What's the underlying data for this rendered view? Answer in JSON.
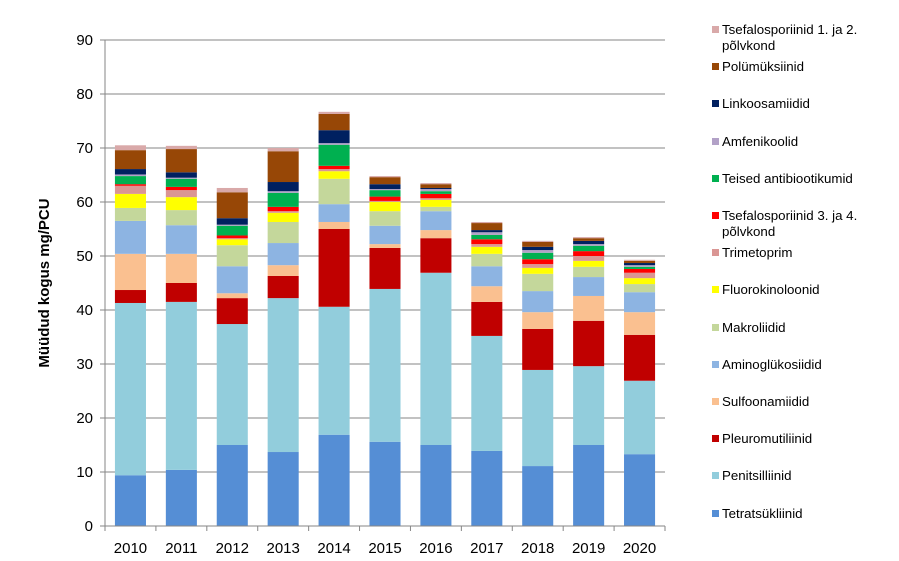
{
  "chart_data": {
    "type": "bar",
    "stacked": true,
    "title": "",
    "xlabel": "",
    "ylabel": "Müüdud kogus mg/PCU",
    "ylim": [
      0,
      90
    ],
    "yticks": [
      0,
      10,
      20,
      30,
      40,
      50,
      60,
      70,
      80,
      90
    ],
    "grid": true,
    "legend_position": "right",
    "categories": [
      "2010",
      "2011",
      "2012",
      "2013",
      "2014",
      "2015",
      "2016",
      "2017",
      "2018",
      "2019",
      "2020"
    ],
    "series": [
      {
        "name": "Tetratsükliinid",
        "color": "#558ED5",
        "values": [
          9.4,
          10.4,
          15.0,
          13.7,
          16.9,
          15.6,
          15.0,
          13.9,
          11.1,
          15.0,
          13.3
        ]
      },
      {
        "name": "Penitsilliinid",
        "color": "#92CDDC",
        "values": [
          31.9,
          31.1,
          22.4,
          28.5,
          23.7,
          28.3,
          31.9,
          21.3,
          17.8,
          14.6,
          13.6
        ]
      },
      {
        "name": "Pleuromutiliinid",
        "color": "#C00000",
        "values": [
          2.4,
          3.5,
          4.8,
          4.1,
          14.4,
          7.6,
          6.4,
          6.3,
          7.6,
          8.4,
          8.5
        ]
      },
      {
        "name": "Sulfoonamiidid",
        "color": "#FAC090",
        "values": [
          6.7,
          5.4,
          0.9,
          2.0,
          1.3,
          0.7,
          1.5,
          2.9,
          3.1,
          4.6,
          4.2
        ]
      },
      {
        "name": "Aminoglükosiidid",
        "color": "#8DB4E2",
        "values": [
          6.1,
          5.3,
          5.0,
          4.1,
          3.3,
          3.4,
          3.5,
          3.7,
          3.9,
          3.5,
          3.7
        ]
      },
      {
        "name": "Makroliidid",
        "color": "#C4D79B",
        "values": [
          2.4,
          2.8,
          3.9,
          3.9,
          4.7,
          2.7,
          0.8,
          2.3,
          3.2,
          1.9,
          1.5
        ]
      },
      {
        "name": "Fluorokinoloonid",
        "color": "#FFFF00",
        "values": [
          2.6,
          2.4,
          1.1,
          1.7,
          1.4,
          1.7,
          1.3,
          1.3,
          1.1,
          1.1,
          1.1
        ]
      },
      {
        "name": "Trimetoprim",
        "color": "#DA9694",
        "values": [
          1.5,
          1.3,
          0.2,
          0.3,
          0.4,
          0.2,
          0.3,
          0.5,
          0.7,
          0.9,
          1.0
        ]
      },
      {
        "name": "Tsefalosporiinid 3. ja 4. põlvkond",
        "color": "#FF0000",
        "values": [
          0.3,
          0.6,
          0.5,
          0.8,
          0.6,
          0.8,
          0.8,
          0.9,
          0.9,
          0.9,
          0.7
        ]
      },
      {
        "name": "Teised antibiootikumid",
        "color": "#00B050",
        "values": [
          1.5,
          1.5,
          1.8,
          2.6,
          3.9,
          1.2,
          0.5,
          0.8,
          1.2,
          1.0,
          0.4
        ]
      },
      {
        "name": "Amfenikoolid",
        "color": "#B2A1C7",
        "values": [
          0.3,
          0.2,
          0.2,
          0.3,
          0.3,
          0.2,
          0.4,
          0.5,
          0.5,
          0.3,
          0.3
        ]
      },
      {
        "name": "Linkoosamiidid",
        "color": "#002060",
        "values": [
          1.0,
          1.0,
          1.2,
          1.7,
          2.4,
          0.9,
          0.2,
          0.4,
          0.6,
          0.6,
          0.4
        ]
      },
      {
        "name": "Polümüksiinid",
        "color": "#974706",
        "values": [
          3.5,
          4.3,
          4.8,
          5.7,
          3.0,
          1.3,
          0.7,
          1.3,
          0.9,
          0.5,
          0.4
        ]
      },
      {
        "name": "Tsefalosporiinid 1. ja 2. põlvkond",
        "color": "#D9A9A9",
        "values": [
          0.9,
          0.6,
          0.8,
          0.6,
          0.4,
          0.2,
          0.2,
          0.2,
          0.2,
          0.2,
          0.2
        ]
      }
    ],
    "legend_order": [
      "Tsefalosporiinid 1. ja 2. põlvkond",
      "Polümüksiinid",
      "Linkoosamiidid",
      "Amfenikoolid",
      "Teised antibiootikumid",
      "Tsefalosporiinid 3. ja 4. põlvkond",
      "Trimetoprim",
      "Fluorokinoloonid",
      "Makroliidid",
      "Aminoglükosiidid",
      "Sulfoonamiidid",
      "Pleuromutiliinid",
      "Penitsilliinid",
      "Tetratsükliinid"
    ]
  },
  "style": {
    "grid_color": "#868686",
    "axis_color": "#868686"
  }
}
